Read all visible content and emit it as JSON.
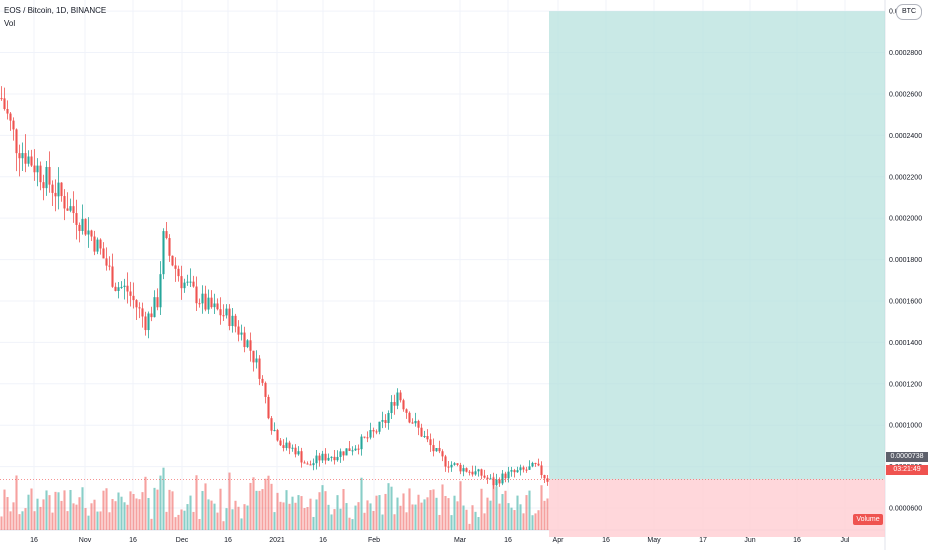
{
  "header": {
    "symbol_line": "EOS / Bitcoin, 1D, BINANCE",
    "indicator": "Vol"
  },
  "unit_button": "BTC",
  "last_price_label": "0.0000738",
  "countdown_label": "03:21:49",
  "volume_badge": "Volume",
  "colors": {
    "up": "#26a69a",
    "down": "#ef5350",
    "projection_profit": "#b2dfdb",
    "projection_loss": "#ffcdd2",
    "grid": "#f0f3fa"
  },
  "chart_data": {
    "type": "candlestick",
    "interval": "1D",
    "y_axis": {
      "ticks": [
        6e-05,
        8e-05,
        0.0001,
        0.00012,
        0.00014,
        0.00016,
        0.00018,
        0.0002,
        0.00022,
        0.00024,
        0.00026,
        0.00028,
        0.0003
      ],
      "tick_labels": [
        "0.0000600",
        "0.0000800",
        "0.0001000",
        "0.0001200",
        "0.0001400",
        "0.0001600",
        "0.0001800",
        "0.0002000",
        "0.0002200",
        "0.0002400",
        "0.0002600",
        "0.0002800",
        "0.0003000"
      ],
      "range": [
        4.6e-05,
        0.000302
      ]
    },
    "x_axis": {
      "tick_labels": [
        "16",
        "Nov",
        "16",
        "Dec",
        "16",
        "2021",
        "16",
        "Feb",
        "Mar",
        "16",
        "Apr",
        "16",
        "May",
        "17",
        "Jun",
        "16",
        "Jul"
      ]
    },
    "price_path": [
      [
        0,
        0.000258
      ],
      [
        5,
        0.000236
      ],
      [
        12,
        0.000224
      ],
      [
        20,
        0.00021
      ],
      [
        28,
        0.000196
      ],
      [
        33,
        0.000184
      ],
      [
        38,
        0.000168
      ],
      [
        42,
        0.000165
      ],
      [
        48,
        0.00015
      ],
      [
        52,
        0.00016
      ],
      [
        54,
        0.00019
      ],
      [
        56,
        0.000182
      ],
      [
        60,
        0.00017
      ],
      [
        68,
        0.000158
      ],
      [
        76,
        0.000152
      ],
      [
        82,
        0.00014
      ],
      [
        86,
        0.000126
      ],
      [
        90,
        0.0001
      ],
      [
        94,
        9e-05
      ],
      [
        98,
        8.8e-05
      ],
      [
        102,
        8e-05
      ],
      [
        106,
        8.4e-05
      ],
      [
        112,
        8.6e-05
      ],
      [
        118,
        9e-05
      ],
      [
        124,
        9.6e-05
      ],
      [
        128,
        0.000102
      ],
      [
        132,
        0.000116
      ],
      [
        136,
        0.000104
      ],
      [
        140,
        9.6e-05
      ],
      [
        144,
        8.8e-05
      ],
      [
        148,
        8.2e-05
      ],
      [
        154,
        7.9e-05
      ],
      [
        160,
        7.6e-05
      ],
      [
        164,
        7.2e-05
      ],
      [
        168,
        7.6e-05
      ],
      [
        174,
        7.8e-05
      ],
      [
        178,
        8e-05
      ],
      [
        182,
        7.38e-05
      ]
    ],
    "projection": {
      "entry": 7.38e-05,
      "target": 0.0003,
      "stop": 4.6e-05,
      "start_label": "Apr",
      "end_label": "Jul"
    }
  }
}
